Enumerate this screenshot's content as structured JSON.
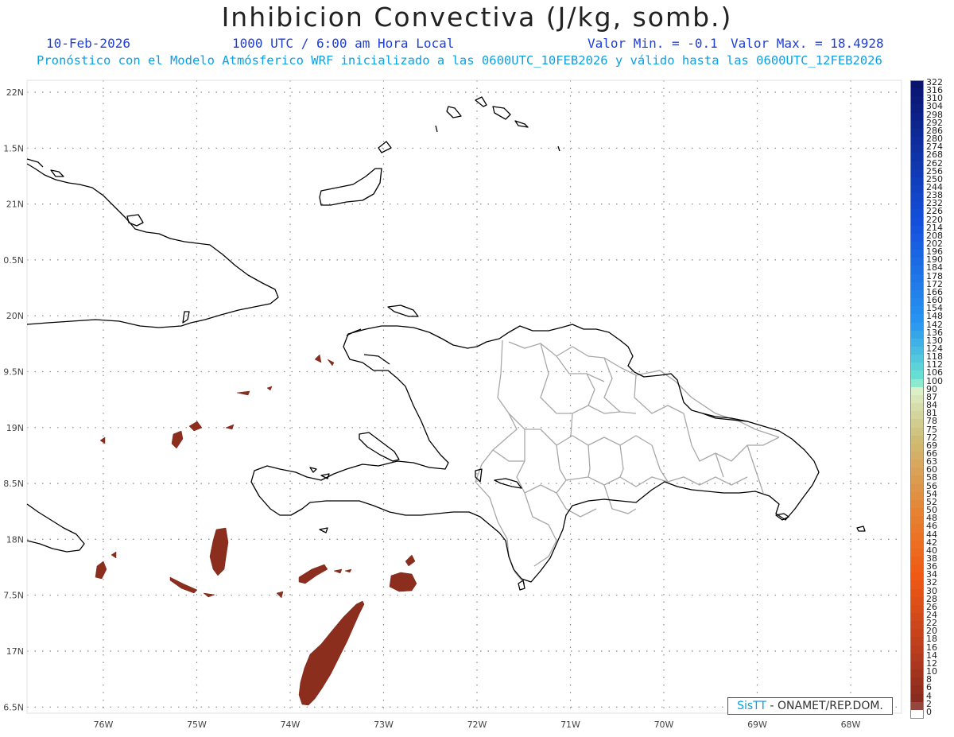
{
  "header": {
    "title": "Inhibicion Convectiva (J/kg, somb.)",
    "date": "10-Feb-2026",
    "time": "1000 UTC / 6:00 am Hora Local",
    "valmin_label": "Valor Min. = -0.1",
    "valmax_label": "Valor Max. = 18.4928",
    "forecast": "Pronóstico con el Modelo Atmósferico WRF inicializado a las 0600UTC_10FEB2026 y válido hasta las  0600UTC_12FEB2026"
  },
  "map": {
    "lon_range": [
      -76.8,
      -67.5
    ],
    "lat_range": [
      6.4,
      22.1
    ],
    "lat_labels": [
      "22N",
      "1.5N",
      "21N",
      "0.5N",
      "20N",
      "9.5N",
      "19N",
      "8.5N",
      "18N",
      "7.5N",
      "17N",
      "6.5N"
    ],
    "lon_labels": [
      "76W",
      "75W",
      "74W",
      "73W",
      "72W",
      "71W",
      "70W",
      "69W",
      "68W"
    ],
    "colors": {
      "coastline": "#000000",
      "provinces": "#a8a8a8",
      "shading": "#8c2e1e",
      "grid": "#888888"
    }
  },
  "legend": {
    "labels": [
      "322",
      "316",
      "310",
      "304",
      "298",
      "292",
      "286",
      "280",
      "274",
      "268",
      "262",
      "256",
      "250",
      "244",
      "238",
      "232",
      "226",
      "220",
      "214",
      "208",
      "202",
      "196",
      "190",
      "184",
      "178",
      "172",
      "166",
      "160",
      "154",
      "148",
      "142",
      "136",
      "130",
      "124",
      "118",
      "112",
      "106",
      "100",
      "90",
      "87",
      "84",
      "81",
      "78",
      "75",
      "72",
      "69",
      "66",
      "63",
      "60",
      "58",
      "56",
      "54",
      "52",
      "50",
      "48",
      "46",
      "44",
      "42",
      "40",
      "38",
      "36",
      "34",
      "32",
      "30",
      "28",
      "26",
      "24",
      "22",
      "20",
      "18",
      "16",
      "14",
      "12",
      "10",
      "8",
      "6",
      "4",
      "2",
      "0"
    ]
  },
  "watermark": {
    "brand": "SisTT",
    "org": " - ONAMET/REP.DOM."
  }
}
